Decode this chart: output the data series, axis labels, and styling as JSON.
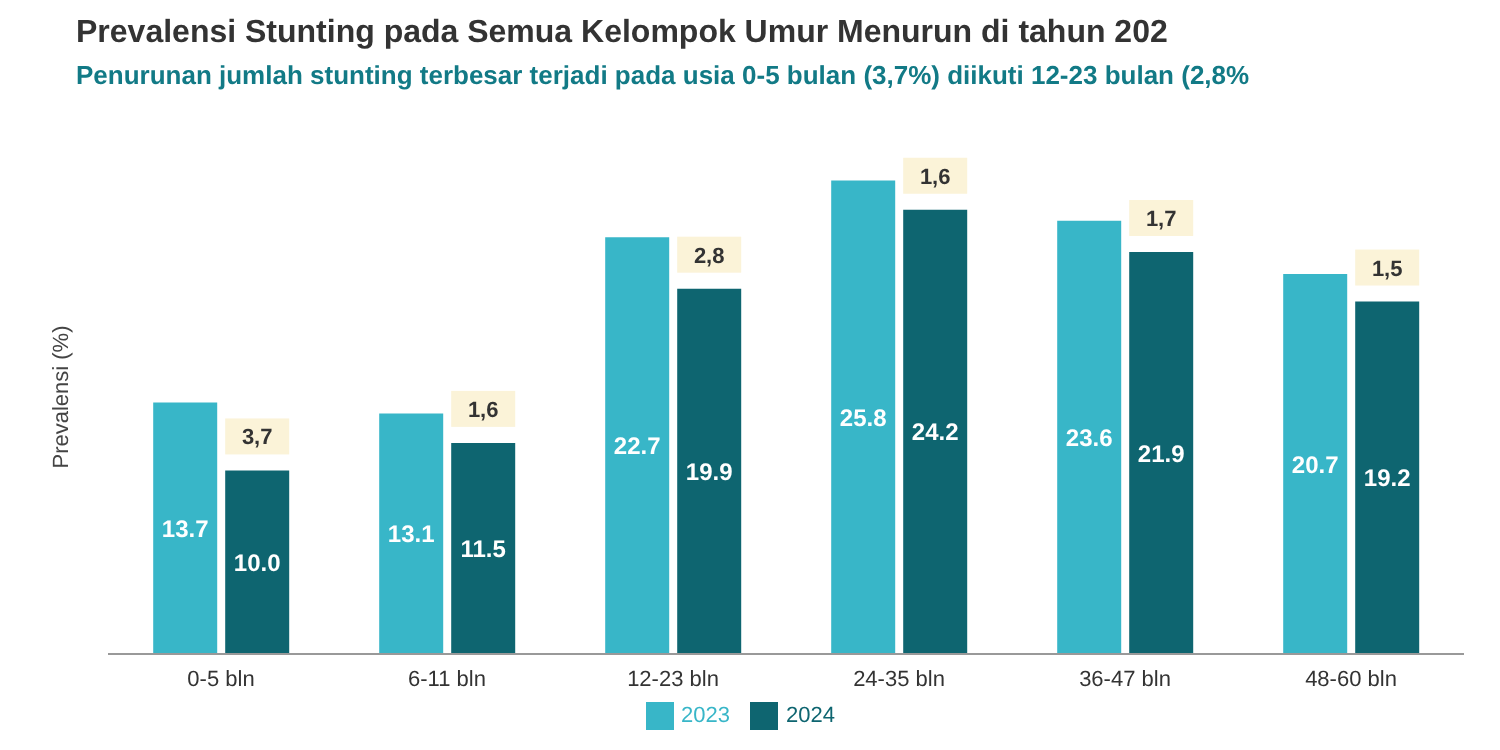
{
  "chart_data": {
    "type": "bar",
    "title": "Prevalensi Stunting pada Semua Kelompok Umur Menurun di tahun 202",
    "subtitle": "Penurunan jumlah stunting terbesar terjadi pada usia 0-5 bulan (3,7%) diikuti 12-23 bulan (2,8%",
    "ylabel": "Prevalensi (%)",
    "categories": [
      "0-5 bln",
      "6-11 bln",
      "12-23 bln",
      "24-35 bln",
      "36-47 bln",
      "48-60 bln"
    ],
    "series": [
      {
        "name": "2023",
        "color": "#38b6c8",
        "values": [
          13.7,
          13.1,
          22.7,
          25.8,
          23.6,
          20.7
        ],
        "value_labels": [
          "13.7",
          "13.1",
          "22.7",
          "25.8",
          "23.6",
          "20.7"
        ]
      },
      {
        "name": "2024",
        "color": "#0e6570",
        "values": [
          10.0,
          11.5,
          19.9,
          24.2,
          21.9,
          19.2
        ],
        "value_labels": [
          "10.0",
          "11.5",
          "19.9",
          "24.2",
          "21.9",
          "19.2"
        ]
      }
    ],
    "tick_labels": "x",
    "legend": "bottom",
    "annotations": [
      {
        "text": "3,7",
        "x": "0-5 bln",
        "y": 10.0
      },
      {
        "text": "1,6",
        "x": "6-11 bln",
        "y": 11.5
      },
      {
        "text": "2,8",
        "x": "12-23 bln",
        "y": 19.9
      },
      {
        "text": "1,6",
        "x": "24-35 bln",
        "y": 24.2
      },
      {
        "text": "1,7",
        "x": "36-47 bln",
        "y": 21.9
      },
      {
        "text": "1,5",
        "x": "48-60 bln",
        "y": 19.2
      }
    ]
  }
}
